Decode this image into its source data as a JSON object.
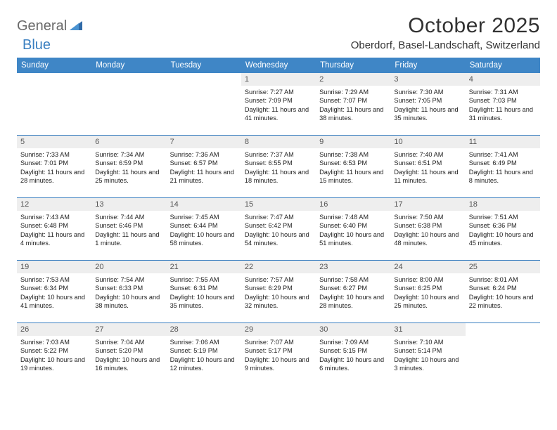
{
  "logo": {
    "part1": "General",
    "part2": "Blue"
  },
  "title": "October 2025",
  "location": "Oberdorf, Basel-Landschaft, Switzerland",
  "colors": {
    "header_bg": "#3f86c6",
    "row_border": "#3a7fc0",
    "daynum_bg": "#eeeeee",
    "logo_blue": "#3a7fc0",
    "logo_gray": "#6a6a6a"
  },
  "weekdays": [
    "Sunday",
    "Monday",
    "Tuesday",
    "Wednesday",
    "Thursday",
    "Friday",
    "Saturday"
  ],
  "weeks": [
    [
      {
        "day": "",
        "lines": []
      },
      {
        "day": "",
        "lines": []
      },
      {
        "day": "",
        "lines": []
      },
      {
        "day": "1",
        "lines": [
          "Sunrise: 7:27 AM",
          "Sunset: 7:09 PM",
          "Daylight: 11 hours and 41 minutes."
        ]
      },
      {
        "day": "2",
        "lines": [
          "Sunrise: 7:29 AM",
          "Sunset: 7:07 PM",
          "Daylight: 11 hours and 38 minutes."
        ]
      },
      {
        "day": "3",
        "lines": [
          "Sunrise: 7:30 AM",
          "Sunset: 7:05 PM",
          "Daylight: 11 hours and 35 minutes."
        ]
      },
      {
        "day": "4",
        "lines": [
          "Sunrise: 7:31 AM",
          "Sunset: 7:03 PM",
          "Daylight: 11 hours and 31 minutes."
        ]
      }
    ],
    [
      {
        "day": "5",
        "lines": [
          "Sunrise: 7:33 AM",
          "Sunset: 7:01 PM",
          "Daylight: 11 hours and 28 minutes."
        ]
      },
      {
        "day": "6",
        "lines": [
          "Sunrise: 7:34 AM",
          "Sunset: 6:59 PM",
          "Daylight: 11 hours and 25 minutes."
        ]
      },
      {
        "day": "7",
        "lines": [
          "Sunrise: 7:36 AM",
          "Sunset: 6:57 PM",
          "Daylight: 11 hours and 21 minutes."
        ]
      },
      {
        "day": "8",
        "lines": [
          "Sunrise: 7:37 AM",
          "Sunset: 6:55 PM",
          "Daylight: 11 hours and 18 minutes."
        ]
      },
      {
        "day": "9",
        "lines": [
          "Sunrise: 7:38 AM",
          "Sunset: 6:53 PM",
          "Daylight: 11 hours and 15 minutes."
        ]
      },
      {
        "day": "10",
        "lines": [
          "Sunrise: 7:40 AM",
          "Sunset: 6:51 PM",
          "Daylight: 11 hours and 11 minutes."
        ]
      },
      {
        "day": "11",
        "lines": [
          "Sunrise: 7:41 AM",
          "Sunset: 6:49 PM",
          "Daylight: 11 hours and 8 minutes."
        ]
      }
    ],
    [
      {
        "day": "12",
        "lines": [
          "Sunrise: 7:43 AM",
          "Sunset: 6:48 PM",
          "Daylight: 11 hours and 4 minutes."
        ]
      },
      {
        "day": "13",
        "lines": [
          "Sunrise: 7:44 AM",
          "Sunset: 6:46 PM",
          "Daylight: 11 hours and 1 minute."
        ]
      },
      {
        "day": "14",
        "lines": [
          "Sunrise: 7:45 AM",
          "Sunset: 6:44 PM",
          "Daylight: 10 hours and 58 minutes."
        ]
      },
      {
        "day": "15",
        "lines": [
          "Sunrise: 7:47 AM",
          "Sunset: 6:42 PM",
          "Daylight: 10 hours and 54 minutes."
        ]
      },
      {
        "day": "16",
        "lines": [
          "Sunrise: 7:48 AM",
          "Sunset: 6:40 PM",
          "Daylight: 10 hours and 51 minutes."
        ]
      },
      {
        "day": "17",
        "lines": [
          "Sunrise: 7:50 AM",
          "Sunset: 6:38 PM",
          "Daylight: 10 hours and 48 minutes."
        ]
      },
      {
        "day": "18",
        "lines": [
          "Sunrise: 7:51 AM",
          "Sunset: 6:36 PM",
          "Daylight: 10 hours and 45 minutes."
        ]
      }
    ],
    [
      {
        "day": "19",
        "lines": [
          "Sunrise: 7:53 AM",
          "Sunset: 6:34 PM",
          "Daylight: 10 hours and 41 minutes."
        ]
      },
      {
        "day": "20",
        "lines": [
          "Sunrise: 7:54 AM",
          "Sunset: 6:33 PM",
          "Daylight: 10 hours and 38 minutes."
        ]
      },
      {
        "day": "21",
        "lines": [
          "Sunrise: 7:55 AM",
          "Sunset: 6:31 PM",
          "Daylight: 10 hours and 35 minutes."
        ]
      },
      {
        "day": "22",
        "lines": [
          "Sunrise: 7:57 AM",
          "Sunset: 6:29 PM",
          "Daylight: 10 hours and 32 minutes."
        ]
      },
      {
        "day": "23",
        "lines": [
          "Sunrise: 7:58 AM",
          "Sunset: 6:27 PM",
          "Daylight: 10 hours and 28 minutes."
        ]
      },
      {
        "day": "24",
        "lines": [
          "Sunrise: 8:00 AM",
          "Sunset: 6:25 PM",
          "Daylight: 10 hours and 25 minutes."
        ]
      },
      {
        "day": "25",
        "lines": [
          "Sunrise: 8:01 AM",
          "Sunset: 6:24 PM",
          "Daylight: 10 hours and 22 minutes."
        ]
      }
    ],
    [
      {
        "day": "26",
        "lines": [
          "Sunrise: 7:03 AM",
          "Sunset: 5:22 PM",
          "Daylight: 10 hours and 19 minutes."
        ]
      },
      {
        "day": "27",
        "lines": [
          "Sunrise: 7:04 AM",
          "Sunset: 5:20 PM",
          "Daylight: 10 hours and 16 minutes."
        ]
      },
      {
        "day": "28",
        "lines": [
          "Sunrise: 7:06 AM",
          "Sunset: 5:19 PM",
          "Daylight: 10 hours and 12 minutes."
        ]
      },
      {
        "day": "29",
        "lines": [
          "Sunrise: 7:07 AM",
          "Sunset: 5:17 PM",
          "Daylight: 10 hours and 9 minutes."
        ]
      },
      {
        "day": "30",
        "lines": [
          "Sunrise: 7:09 AM",
          "Sunset: 5:15 PM",
          "Daylight: 10 hours and 6 minutes."
        ]
      },
      {
        "day": "31",
        "lines": [
          "Sunrise: 7:10 AM",
          "Sunset: 5:14 PM",
          "Daylight: 10 hours and 3 minutes."
        ]
      },
      {
        "day": "",
        "lines": []
      }
    ]
  ]
}
